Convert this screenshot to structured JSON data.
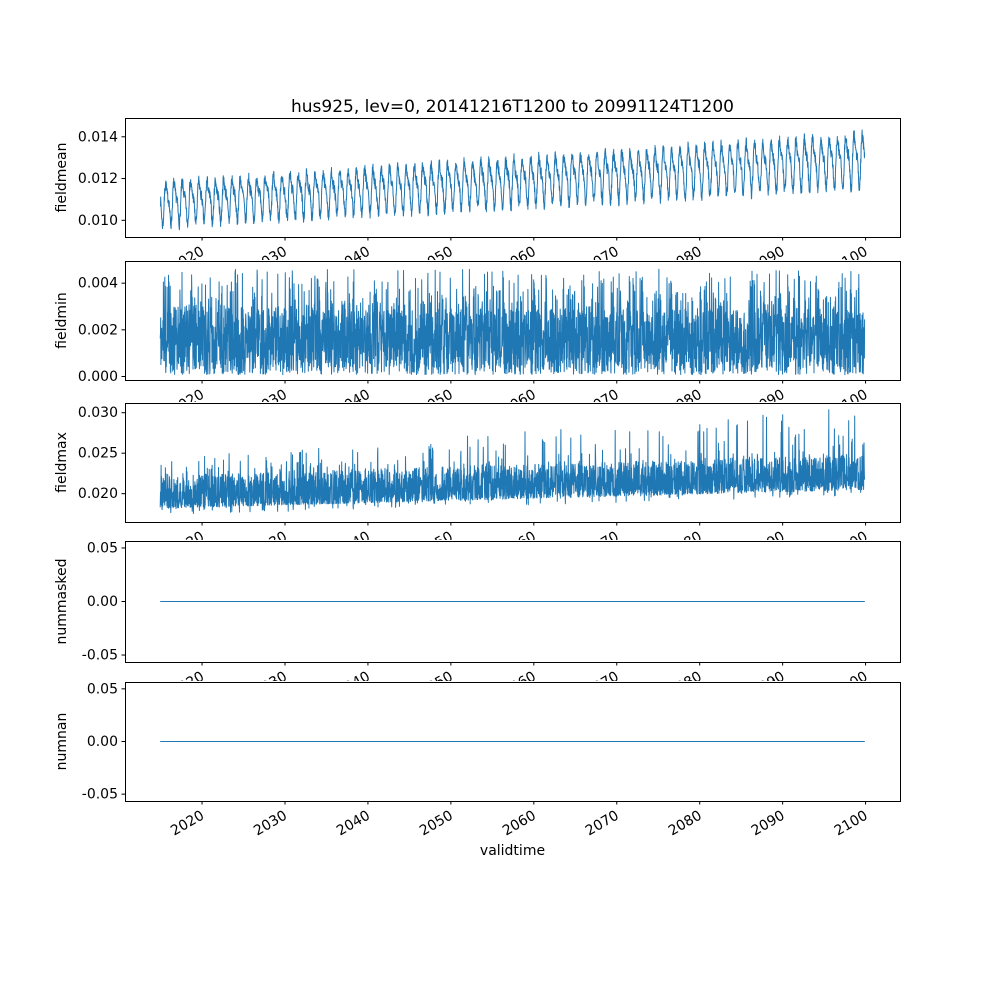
{
  "figure": {
    "title": "hus925, lev=0, 20141216T1200 to 20991124T1200",
    "xlabel": "validtime",
    "background": "#ffffff",
    "line_color": "#1f77b4"
  },
  "x_axis": {
    "label": "validtime",
    "lim": [
      2010.71,
      2104.15
    ],
    "data_range": [
      2014.96,
      2099.9
    ],
    "ticks": [
      2020,
      2030,
      2040,
      2050,
      2060,
      2070,
      2080,
      2090,
      2100
    ],
    "tick_labels": [
      "2020",
      "2030",
      "2040",
      "2050",
      "2060",
      "2070",
      "2080",
      "2090",
      "2100"
    ],
    "tick_rotation_deg": 30
  },
  "chart_data": [
    {
      "type": "line",
      "ylabel": "fieldmean",
      "ylim": [
        0.0092,
        0.0149
      ],
      "yticks": [
        0.01,
        0.012,
        0.014
      ],
      "ytick_labels": [
        "0.010",
        "0.012",
        "0.014"
      ],
      "approx_value_range": [
        0.0095,
        0.0147
      ],
      "trend": "rising annual oscillation, mean ~0.0109 in 2015 to ~0.0130 in 2100",
      "series": [
        {
          "name": "fieldmean",
          "color": "#1f77b4",
          "synthesis": {
            "kind": "seasonal",
            "seed": 7,
            "step_years": 0.025,
            "mid_start": 0.01085,
            "mid_end": 0.01295,
            "amp_start": 0.00115,
            "amp_end": 0.00145,
            "noise": 0.00028
          }
        }
      ]
    },
    {
      "type": "line",
      "ylabel": "fieldmin",
      "ylim": [
        -0.00015,
        0.00495
      ],
      "yticks": [
        0.0,
        0.002,
        0.004
      ],
      "ytick_labels": [
        "0.000",
        "0.002",
        "0.004"
      ],
      "approx_value_range": [
        0.0001,
        0.0047
      ],
      "trend": "stationary dense noise band ~0.0003-0.0029 with spikes to ~0.0046",
      "series": [
        {
          "name": "fieldmin",
          "color": "#1f77b4",
          "synthesis": {
            "kind": "noise-band",
            "seed": 11,
            "step_years": 0.025,
            "low": 0.0003,
            "high": 0.0029,
            "spike_prob": 0.12,
            "spike_max": 0.0017,
            "dip_prob": 0.08,
            "dip_low": 8e-05
          }
        }
      ]
    },
    {
      "type": "line",
      "ylabel": "fieldmax",
      "ylim": [
        0.0165,
        0.0312
      ],
      "yticks": [
        0.02,
        0.025,
        0.03
      ],
      "ytick_labels": [
        "0.020",
        "0.025",
        "0.030"
      ],
      "approx_value_range": [
        0.0172,
        0.031
      ],
      "trend": "slowly rising noise band ~0.018-0.025 with spikes growing to ~0.031 by 2100",
      "series": [
        {
          "name": "fieldmax",
          "color": "#1f77b4",
          "synthesis": {
            "kind": "noise-band-trend",
            "seed": 23,
            "step_years": 0.025,
            "low_start": 0.0182,
            "low_end": 0.0205,
            "high_start": 0.0222,
            "high_end": 0.0249,
            "skew": 1.5,
            "spike_prob": 0.05,
            "spike_max_start": 0.0022,
            "spike_max_end": 0.0058,
            "dip_prob": 0.03,
            "dip_depth": 0.0008
          }
        }
      ]
    },
    {
      "type": "line",
      "ylabel": "nummasked",
      "ylim": [
        -0.0565,
        0.0565
      ],
      "yticks": [
        -0.05,
        0.0,
        0.05
      ],
      "ytick_labels": [
        "-0.05",
        "0.00",
        "0.05"
      ],
      "approx_value_range": [
        0,
        0
      ],
      "trend": "constant zero",
      "series": [
        {
          "name": "nummasked",
          "color": "#1f77b4",
          "synthesis": {
            "kind": "constant",
            "value": 0
          }
        }
      ]
    },
    {
      "type": "line",
      "ylabel": "numnan",
      "ylim": [
        -0.0565,
        0.0565
      ],
      "yticks": [
        -0.05,
        0.0,
        0.05
      ],
      "ytick_labels": [
        "-0.05",
        "0.00",
        "0.05"
      ],
      "approx_value_range": [
        0,
        0
      ],
      "trend": "constant zero",
      "series": [
        {
          "name": "numnan",
          "color": "#1f77b4",
          "synthesis": {
            "kind": "constant",
            "value": 0
          }
        }
      ]
    }
  ]
}
